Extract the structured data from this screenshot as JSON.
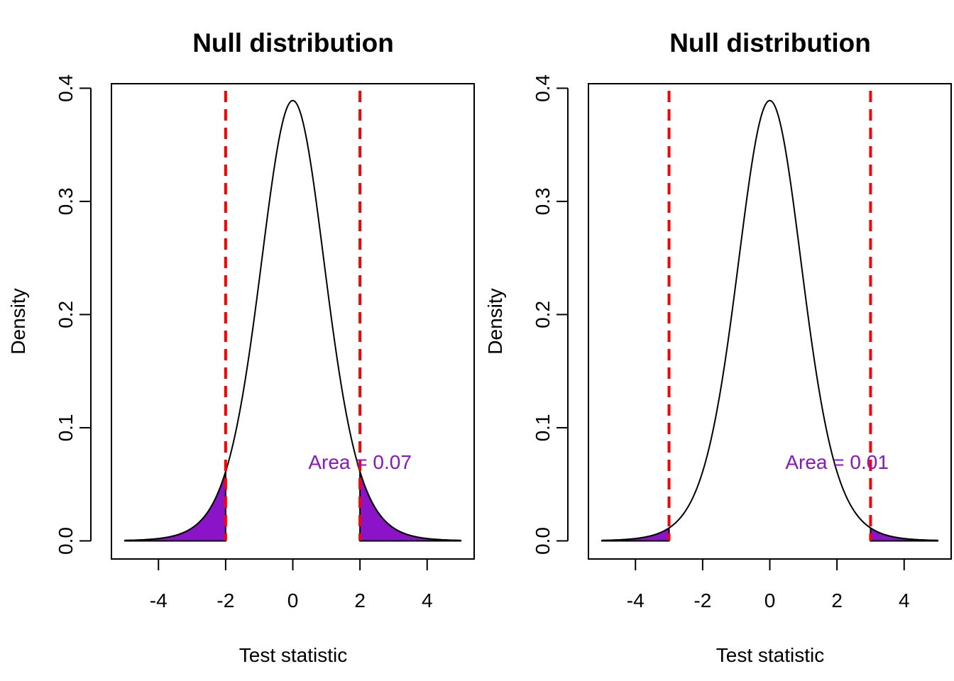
{
  "colors": {
    "curve": "#000000",
    "critical_line": "#ff0000",
    "tail_fill": "#8b14c8",
    "annotation": "#8b14c8"
  },
  "chart_data": [
    {
      "type": "line",
      "title": "Null distribution",
      "xlabel": "Test statistic",
      "ylabel": "Density",
      "xlim": [
        -5.4,
        5.4
      ],
      "ylim": [
        -0.016,
        0.404
      ],
      "x_ticks": [
        -4,
        -2,
        0,
        2,
        4
      ],
      "x_tick_labels": [
        "-4",
        "-2",
        "0",
        "2",
        "4"
      ],
      "y_ticks": [
        0.0,
        0.1,
        0.2,
        0.3,
        0.4
      ],
      "y_tick_labels": [
        "0.0",
        "0.1",
        "0.2",
        "0.3",
        "0.4"
      ],
      "grid": false,
      "series": [
        {
          "distribution": "t",
          "df": 10,
          "x_range": [
            -5,
            5
          ],
          "peak_density": 0.389
        }
      ],
      "critical_values": [
        -2,
        2
      ],
      "shaded_tails": {
        "lower": [
          -5,
          -2
        ],
        "upper": [
          2,
          5
        ]
      },
      "annotation": {
        "text": "Area = 0.07",
        "x": 2.0,
        "y": 0.07
      }
    },
    {
      "type": "line",
      "title": "Null distribution",
      "xlabel": "Test statistic",
      "ylabel": "Density",
      "xlim": [
        -5.4,
        5.4
      ],
      "ylim": [
        -0.016,
        0.404
      ],
      "x_ticks": [
        -4,
        -2,
        0,
        2,
        4
      ],
      "x_tick_labels": [
        "-4",
        "-2",
        "0",
        "2",
        "4"
      ],
      "y_ticks": [
        0.0,
        0.1,
        0.2,
        0.3,
        0.4
      ],
      "y_tick_labels": [
        "0.0",
        "0.1",
        "0.2",
        "0.3",
        "0.4"
      ],
      "grid": false,
      "series": [
        {
          "distribution": "t",
          "df": 10,
          "x_range": [
            -5,
            5
          ],
          "peak_density": 0.389
        }
      ],
      "critical_values": [
        -3,
        3
      ],
      "shaded_tails": {
        "lower": [
          -5,
          -3
        ],
        "upper": [
          3,
          5
        ]
      },
      "annotation": {
        "text": "Area = 0.01",
        "x": 2.0,
        "y": 0.07
      }
    }
  ]
}
